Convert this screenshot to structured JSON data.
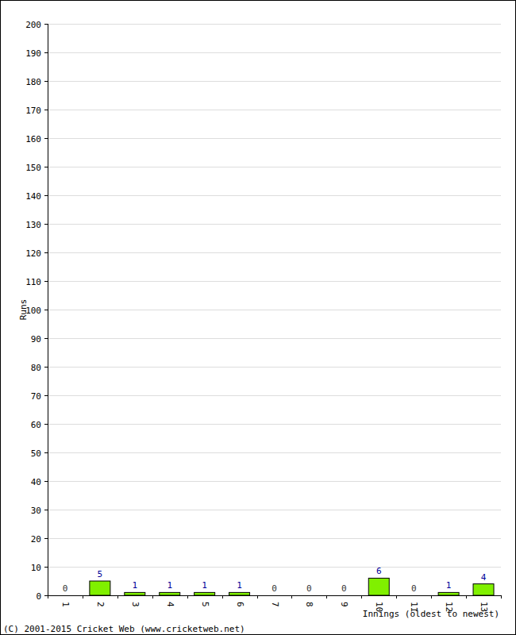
{
  "chart_data": {
    "type": "bar",
    "categories": [
      "1",
      "2",
      "3",
      "4",
      "5",
      "6",
      "7",
      "8",
      "9",
      "10",
      "11",
      "12",
      "13"
    ],
    "values": [
      0,
      5,
      1,
      1,
      1,
      1,
      0,
      0,
      0,
      6,
      0,
      1,
      4
    ],
    "color": "#80f000",
    "xlabel": "Innings (oldest to newest)",
    "ylabel": "Runs",
    "ylim": [
      0,
      200
    ],
    "yticks": [
      0,
      10,
      20,
      30,
      40,
      50,
      60,
      70,
      80,
      90,
      100,
      110,
      120,
      130,
      140,
      150,
      160,
      170,
      180,
      190,
      200
    ],
    "grid": true,
    "data_labels": true,
    "annotations": [
      "(C) 2001-2015 Cricket Web (www.cricketweb.net)"
    ]
  }
}
